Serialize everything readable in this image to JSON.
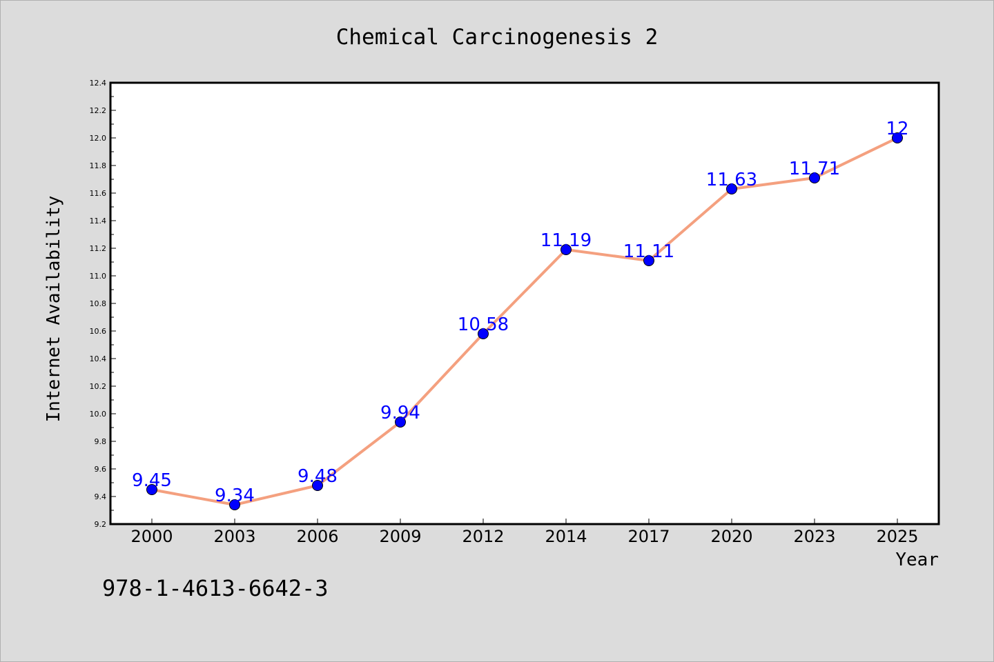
{
  "chart_data": {
    "type": "line",
    "title": "Chemical Carcinogenesis 2",
    "xlabel": "Year",
    "ylabel": "Internet Availability",
    "categories": [
      "2000",
      "2003",
      "2006",
      "2009",
      "2012",
      "2014",
      "2017",
      "2020",
      "2023",
      "2025"
    ],
    "series": [
      {
        "values": [
          9.45,
          9.34,
          9.48,
          9.94,
          10.58,
          11.19,
          11.11,
          11.63,
          11.71,
          12
        ],
        "data_labels": [
          "9.45",
          "9.34",
          "9.48",
          "9.94",
          "10.58",
          "11.19",
          "11.11",
          "11.63",
          "11.71",
          "12"
        ]
      }
    ],
    "ylim": [
      9.2,
      12.4
    ],
    "yticks": [
      "9.2",
      "9.4",
      "9.6",
      "9.8",
      "10.0",
      "10.2",
      "10.4",
      "10.6",
      "10.8",
      "11.0",
      "11.2",
      "11.4",
      "11.6",
      "11.8",
      "12.0",
      "12.2",
      "12.4"
    ],
    "grid": false,
    "legend": "none",
    "colors": {
      "line": "#f4a07f",
      "marker": "#0000ff",
      "data_label": "#0000ff",
      "background": "#dcdcdc",
      "plot_background": "#ffffff"
    }
  },
  "footer": {
    "isbn": "978-1-4613-6642-3"
  }
}
